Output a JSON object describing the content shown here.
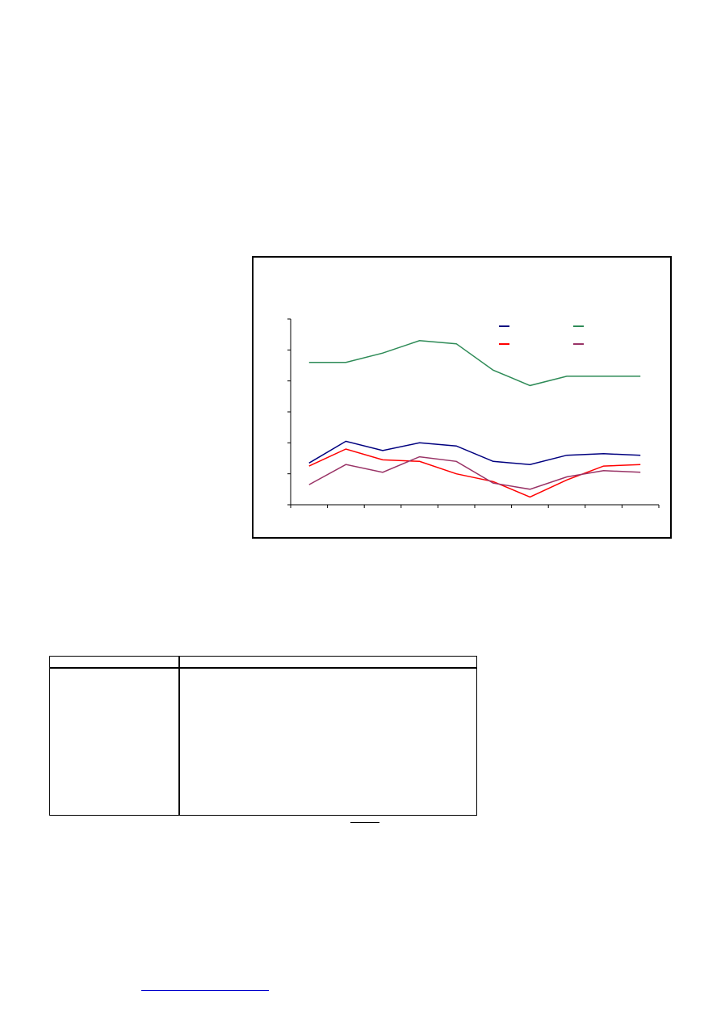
{
  "chart_data": {
    "type": "line",
    "title": "",
    "xlabel": "",
    "ylabel": "",
    "ylim": [
      0,
      6
    ],
    "grid": false,
    "legend_position": "top-right",
    "categories": [
      "",
      "",
      "",
      "",
      "",
      "",
      "",
      "",
      "",
      ""
    ],
    "series": [
      {
        "color": "#00007f",
        "values": [
          1.35,
          2.05,
          1.75,
          2.0,
          1.9,
          1.4,
          1.3,
          1.6,
          1.65,
          1.6
        ]
      },
      {
        "color": "#2e8b57",
        "values": [
          4.6,
          4.6,
          4.9,
          5.3,
          5.2,
          4.35,
          3.85,
          4.15,
          4.15,
          4.15
        ]
      },
      {
        "color": "#ff0000",
        "values": [
          1.25,
          1.8,
          1.45,
          1.4,
          1.0,
          0.75,
          0.25,
          0.8,
          1.25,
          1.3
        ]
      },
      {
        "color": "#993366",
        "values": [
          0.65,
          1.3,
          1.05,
          1.55,
          1.4,
          0.7,
          0.5,
          0.9,
          1.1,
          1.05
        ]
      }
    ]
  },
  "table": {
    "headers": [
      "",
      ""
    ],
    "body": [
      "",
      ""
    ]
  },
  "footer": {
    "link_text": ""
  }
}
